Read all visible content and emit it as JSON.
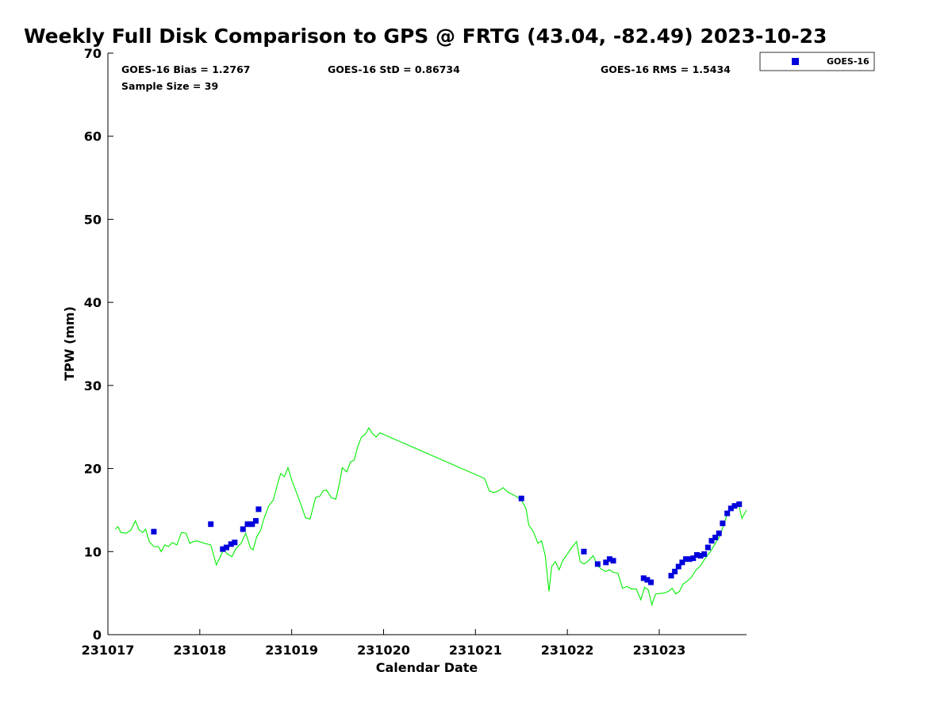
{
  "chart_data": {
    "type": "scatter",
    "title": "Weekly Full Disk Comparison to GPS @ FRTG (43.04, -82.49) 2023-10-23",
    "xlabel": "Calendar Date",
    "ylabel": "TPW (mm)",
    "xlim": [
      0,
      6.95
    ],
    "ylim": [
      0,
      70
    ],
    "x_tick_labels": [
      "231017",
      "231018",
      "231019",
      "231020",
      "231021",
      "231022",
      "231023"
    ],
    "x_tick_values": [
      0,
      1,
      2,
      3,
      4,
      5,
      6
    ],
    "y_ticks": [
      0,
      10,
      20,
      30,
      40,
      50,
      60,
      70
    ],
    "grid": false,
    "legend_position": "top-right, outside plot",
    "stats": {
      "bias": "GOES-16 Bias = 1.2767",
      "std": "GOES-16 StD = 0.86734",
      "rms": "GOES-16 RMS = 1.5434",
      "sample_size": "Sample Size = 39"
    },
    "series": [
      {
        "name": "GOES-16",
        "kind": "scatter",
        "marker": "square",
        "color": "#0000dd",
        "points": [
          [
            0.5,
            12.4
          ],
          [
            1.12,
            13.3
          ],
          [
            1.25,
            10.3
          ],
          [
            1.29,
            10.5
          ],
          [
            1.34,
            10.9
          ],
          [
            1.38,
            11.1
          ],
          [
            1.47,
            12.7
          ],
          [
            1.52,
            13.3
          ],
          [
            1.57,
            13.3
          ],
          [
            1.61,
            13.7
          ],
          [
            1.64,
            15.1
          ],
          [
            4.5,
            16.4
          ],
          [
            5.18,
            10.0
          ],
          [
            5.33,
            8.5
          ],
          [
            5.42,
            8.7
          ],
          [
            5.46,
            9.1
          ],
          [
            5.5,
            8.9
          ],
          [
            5.83,
            6.8
          ],
          [
            5.87,
            6.6
          ],
          [
            5.91,
            6.3
          ],
          [
            6.13,
            7.1
          ],
          [
            6.17,
            7.6
          ],
          [
            6.21,
            8.2
          ],
          [
            6.25,
            8.7
          ],
          [
            6.29,
            9.1
          ],
          [
            6.33,
            9.1
          ],
          [
            6.37,
            9.2
          ],
          [
            6.41,
            9.6
          ],
          [
            6.45,
            9.5
          ],
          [
            6.49,
            9.7
          ],
          [
            6.53,
            10.5
          ],
          [
            6.57,
            11.3
          ],
          [
            6.61,
            11.7
          ],
          [
            6.65,
            12.2
          ],
          [
            6.69,
            13.4
          ],
          [
            6.74,
            14.6
          ],
          [
            6.78,
            15.2
          ],
          [
            6.82,
            15.5
          ],
          [
            6.87,
            15.7
          ]
        ]
      },
      {
        "kind": "line",
        "color": "#00ee00",
        "points": [
          [
            0.08,
            12.7
          ],
          [
            0.11,
            13.0
          ],
          [
            0.14,
            12.3
          ],
          [
            0.2,
            12.2
          ],
          [
            0.25,
            12.6
          ],
          [
            0.3,
            13.7
          ],
          [
            0.34,
            12.6
          ],
          [
            0.38,
            12.3
          ],
          [
            0.41,
            12.7
          ],
          [
            0.45,
            11.2
          ],
          [
            0.5,
            10.6
          ],
          [
            0.55,
            10.6
          ],
          [
            0.58,
            10.0
          ],
          [
            0.62,
            10.8
          ],
          [
            0.66,
            10.6
          ],
          [
            0.7,
            11.1
          ],
          [
            0.75,
            10.8
          ],
          [
            0.8,
            12.3
          ],
          [
            0.85,
            12.2
          ],
          [
            0.89,
            11.0
          ],
          [
            0.93,
            11.2
          ],
          [
            0.97,
            11.3
          ],
          [
            1.05,
            11.0
          ],
          [
            1.12,
            10.8
          ],
          [
            1.18,
            8.4
          ],
          [
            1.22,
            9.3
          ],
          [
            1.26,
            10.3
          ],
          [
            1.3,
            9.7
          ],
          [
            1.35,
            9.4
          ],
          [
            1.39,
            10.3
          ],
          [
            1.45,
            11.0
          ],
          [
            1.5,
            12.2
          ],
          [
            1.55,
            10.5
          ],
          [
            1.58,
            10.2
          ],
          [
            1.62,
            11.8
          ],
          [
            1.66,
            12.5
          ],
          [
            1.7,
            14.0
          ],
          [
            1.75,
            15.5
          ],
          [
            1.8,
            16.2
          ],
          [
            1.85,
            18.3
          ],
          [
            1.88,
            19.4
          ],
          [
            1.92,
            19.0
          ],
          [
            1.96,
            20.1
          ],
          [
            2.0,
            18.6
          ],
          [
            2.05,
            17.2
          ],
          [
            2.1,
            15.7
          ],
          [
            2.15,
            14.1
          ],
          [
            2.2,
            13.9
          ],
          [
            2.26,
            16.5
          ],
          [
            2.31,
            16.7
          ],
          [
            2.34,
            17.3
          ],
          [
            2.38,
            17.4
          ],
          [
            2.43,
            16.5
          ],
          [
            2.48,
            16.3
          ],
          [
            2.52,
            18.2
          ],
          [
            2.55,
            20.1
          ],
          [
            2.6,
            19.6
          ],
          [
            2.64,
            20.8
          ],
          [
            2.68,
            21.0
          ],
          [
            2.72,
            22.7
          ],
          [
            2.76,
            23.8
          ],
          [
            2.8,
            24.1
          ],
          [
            2.84,
            24.9
          ],
          [
            2.88,
            24.2
          ],
          [
            2.92,
            23.8
          ],
          [
            2.96,
            24.3
          ],
          [
            3.0,
            24.1
          ],
          [
            4.1,
            18.8
          ],
          [
            4.15,
            17.3
          ],
          [
            4.2,
            17.1
          ],
          [
            4.25,
            17.3
          ],
          [
            4.3,
            17.7
          ],
          [
            4.35,
            17.2
          ],
          [
            4.4,
            16.9
          ],
          [
            4.45,
            16.6
          ],
          [
            4.5,
            16.2
          ],
          [
            4.55,
            15.2
          ],
          [
            4.58,
            13.2
          ],
          [
            4.63,
            12.4
          ],
          [
            4.68,
            11.0
          ],
          [
            4.72,
            11.3
          ],
          [
            4.76,
            9.5
          ],
          [
            4.8,
            5.2
          ],
          [
            4.83,
            8.2
          ],
          [
            4.87,
            8.8
          ],
          [
            4.91,
            7.8
          ],
          [
            4.95,
            8.9
          ],
          [
            5.0,
            9.7
          ],
          [
            5.05,
            10.5
          ],
          [
            5.1,
            11.2
          ],
          [
            5.14,
            8.8
          ],
          [
            5.18,
            8.5
          ],
          [
            5.22,
            8.8
          ],
          [
            5.28,
            9.5
          ],
          [
            5.33,
            8.3
          ],
          [
            5.37,
            7.9
          ],
          [
            5.42,
            7.6
          ],
          [
            5.46,
            7.8
          ],
          [
            5.5,
            7.5
          ],
          [
            5.55,
            7.4
          ],
          [
            5.6,
            5.6
          ],
          [
            5.65,
            5.8
          ],
          [
            5.7,
            5.5
          ],
          [
            5.75,
            5.5
          ],
          [
            5.8,
            4.2
          ],
          [
            5.84,
            5.7
          ],
          [
            5.88,
            5.4
          ],
          [
            5.92,
            3.6
          ],
          [
            5.96,
            4.9
          ],
          [
            6.05,
            5.0
          ],
          [
            6.1,
            5.2
          ],
          [
            6.14,
            5.6
          ],
          [
            6.18,
            4.9
          ],
          [
            6.22,
            5.2
          ],
          [
            6.26,
            6.1
          ],
          [
            6.3,
            6.4
          ],
          [
            6.35,
            6.9
          ],
          [
            6.4,
            7.8
          ],
          [
            6.45,
            8.3
          ],
          [
            6.5,
            9.2
          ],
          [
            6.55,
            9.9
          ],
          [
            6.6,
            10.8
          ],
          [
            6.65,
            11.7
          ],
          [
            6.7,
            13.1
          ],
          [
            6.74,
            14.6
          ],
          [
            6.78,
            15.3
          ],
          [
            6.82,
            15.7
          ],
          [
            6.86,
            15.9
          ],
          [
            6.9,
            14.0
          ],
          [
            6.95,
            15.0
          ]
        ]
      }
    ]
  }
}
